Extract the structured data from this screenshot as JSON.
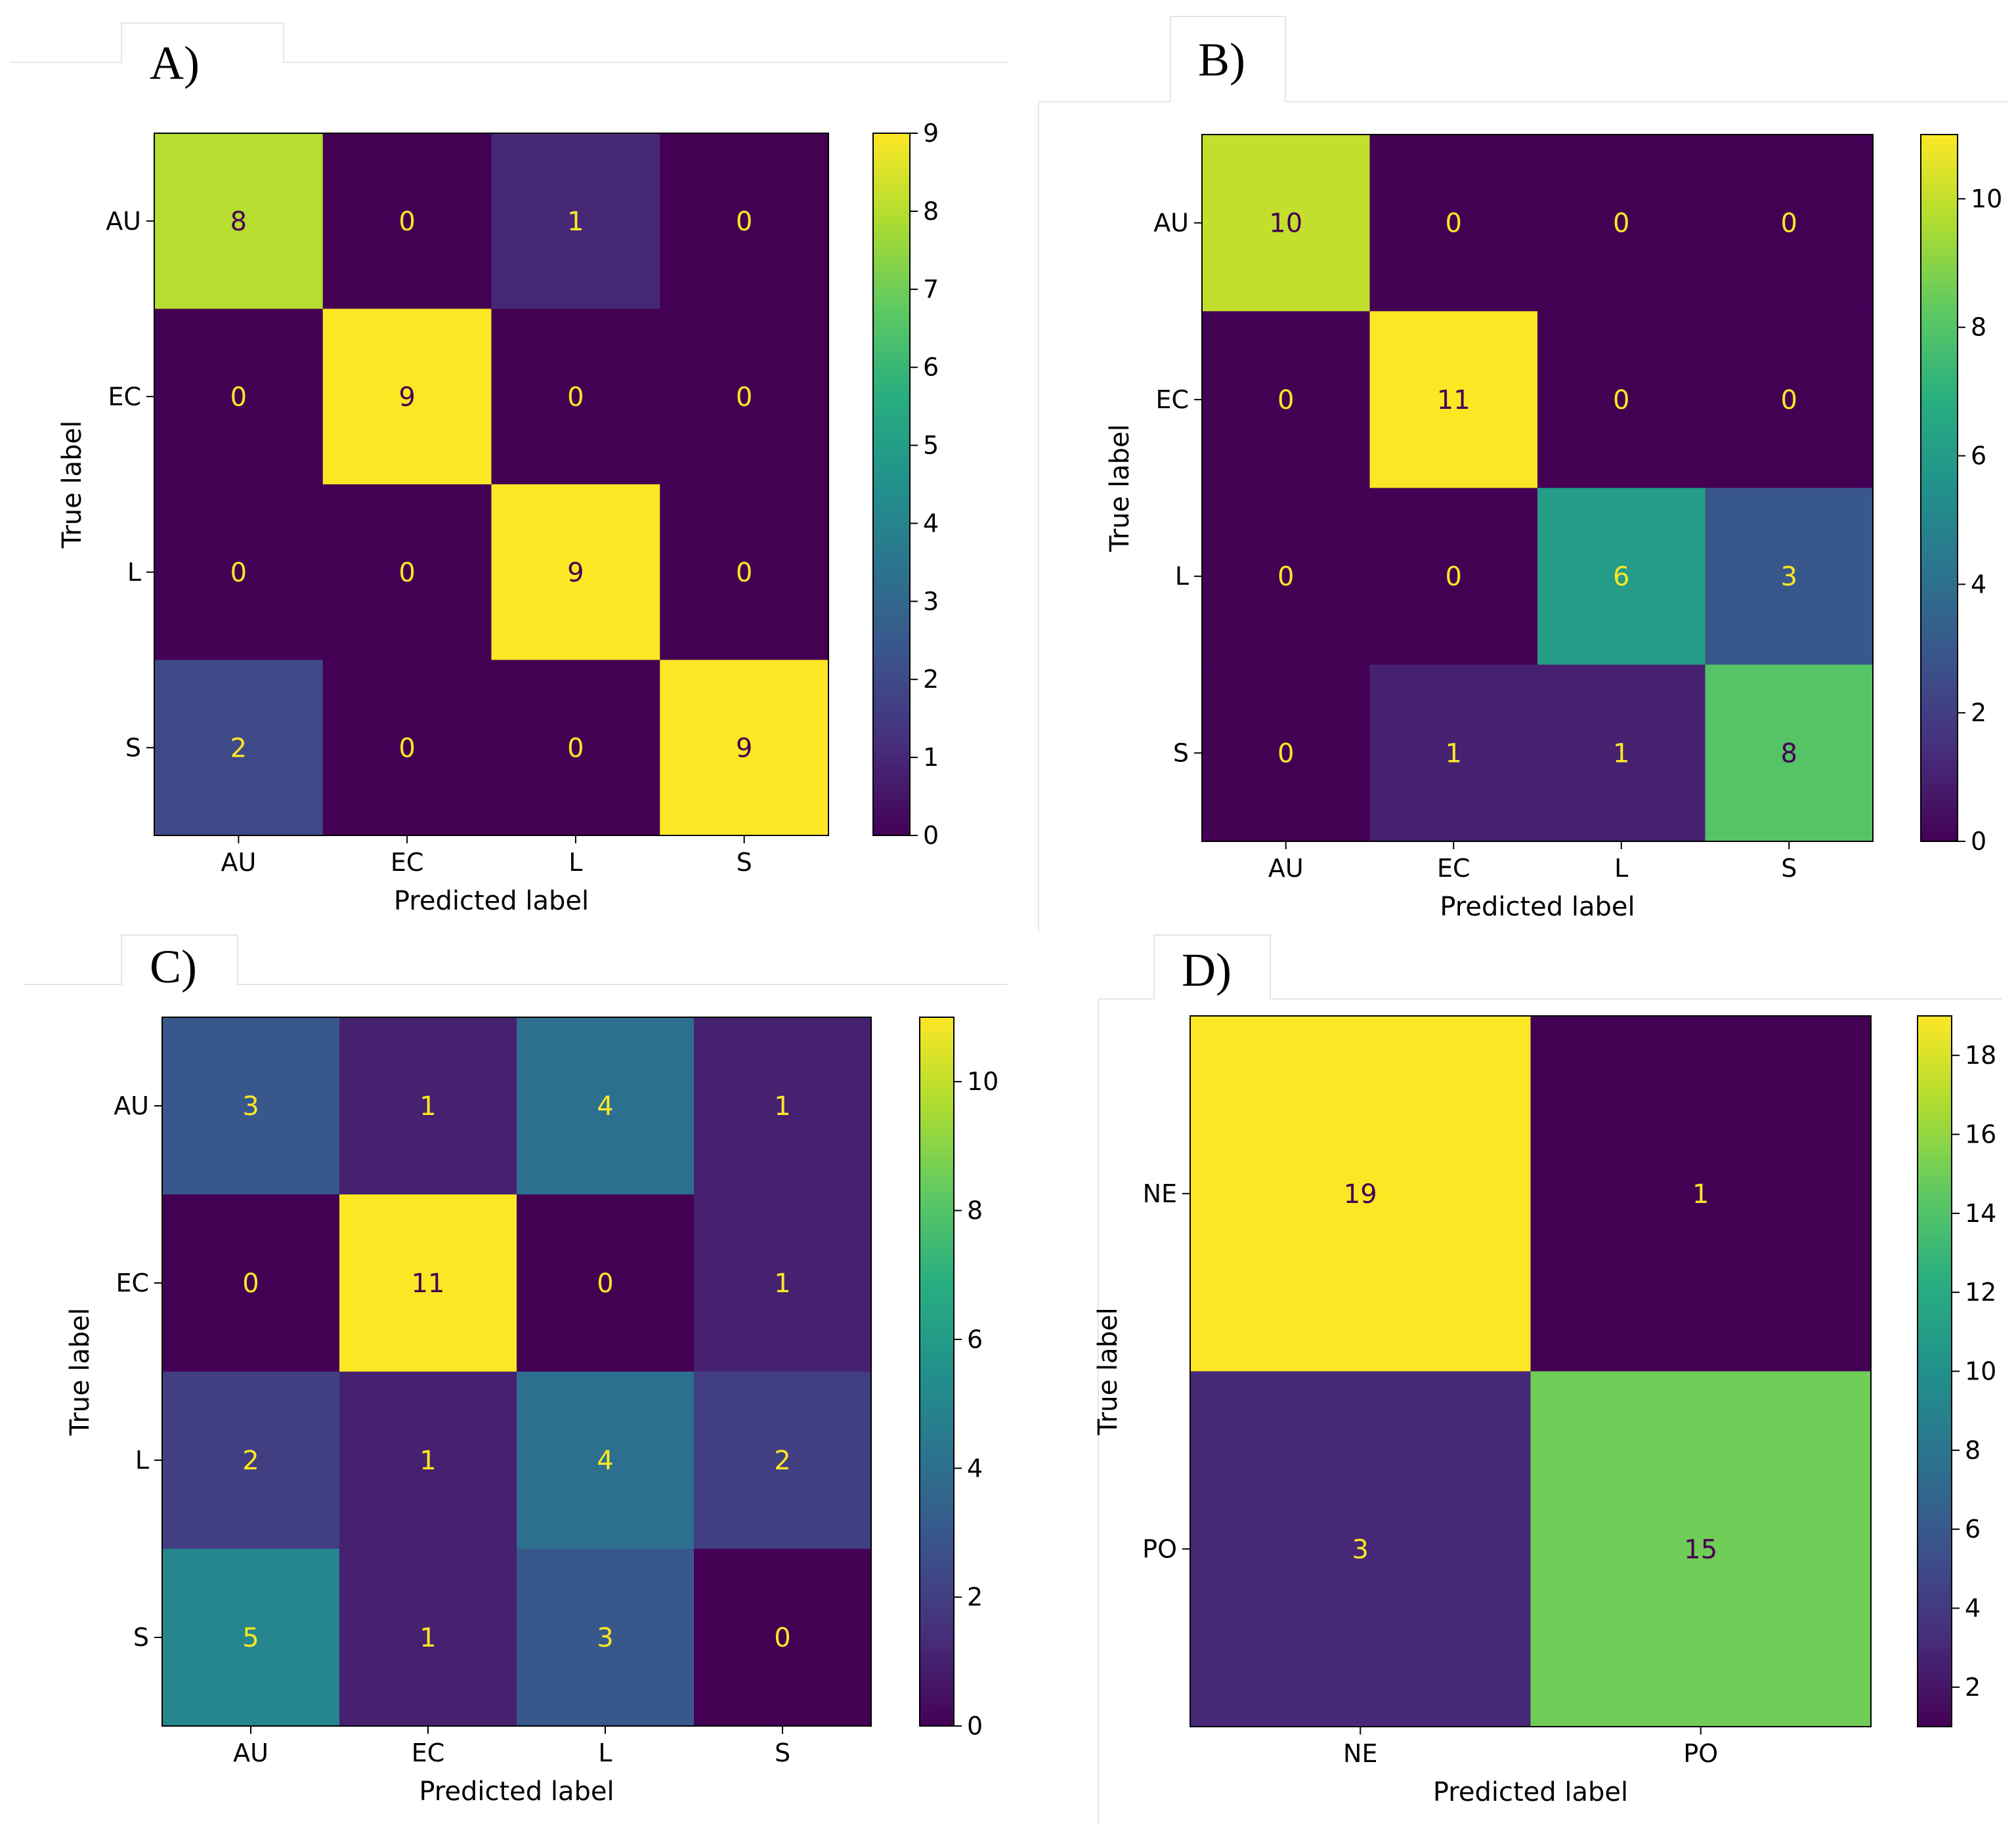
{
  "figure": {
    "colormap": "viridis",
    "panel_labels": [
      "A)",
      "B)",
      "C)",
      "D)"
    ]
  },
  "chart_data": [
    {
      "type": "heatmap",
      "panel": "A)",
      "title": "",
      "xlabel": "Predicted label",
      "ylabel": "True label",
      "x_categories": [
        "AU",
        "EC",
        "L",
        "S"
      ],
      "y_categories": [
        "AU",
        "EC",
        "L",
        "S"
      ],
      "matrix": [
        [
          8,
          0,
          1,
          0
        ],
        [
          0,
          9,
          0,
          0
        ],
        [
          0,
          0,
          9,
          0
        ],
        [
          2,
          0,
          0,
          9
        ]
      ],
      "vmin": 0,
      "vmax": 9,
      "colorbar_ticks": [
        0,
        1,
        2,
        3,
        4,
        5,
        6,
        7,
        8,
        9
      ]
    },
    {
      "type": "heatmap",
      "panel": "B)",
      "title": "",
      "xlabel": "Predicted label",
      "ylabel": "True label",
      "x_categories": [
        "AU",
        "EC",
        "L",
        "S"
      ],
      "y_categories": [
        "AU",
        "EC",
        "L",
        "S"
      ],
      "matrix": [
        [
          10,
          0,
          0,
          0
        ],
        [
          0,
          11,
          0,
          0
        ],
        [
          0,
          0,
          6,
          3
        ],
        [
          0,
          1,
          1,
          8
        ]
      ],
      "vmin": 0,
      "vmax": 11,
      "colorbar_ticks": [
        0,
        2,
        4,
        6,
        8,
        10
      ]
    },
    {
      "type": "heatmap",
      "panel": "C)",
      "title": "",
      "xlabel": "Predicted label",
      "ylabel": "True label",
      "x_categories": [
        "AU",
        "EC",
        "L",
        "S"
      ],
      "y_categories": [
        "AU",
        "EC",
        "L",
        "S"
      ],
      "matrix": [
        [
          3,
          1,
          4,
          1
        ],
        [
          0,
          11,
          0,
          1
        ],
        [
          2,
          1,
          4,
          2
        ],
        [
          5,
          1,
          3,
          0
        ]
      ],
      "vmin": 0,
      "vmax": 11,
      "colorbar_ticks": [
        0,
        2,
        4,
        6,
        8,
        10
      ]
    },
    {
      "type": "heatmap",
      "panel": "D)",
      "title": "",
      "xlabel": "Predicted label",
      "ylabel": "True label",
      "x_categories": [
        "NE",
        "PO"
      ],
      "y_categories": [
        "NE",
        "PO"
      ],
      "matrix": [
        [
          19,
          1
        ],
        [
          3,
          15
        ]
      ],
      "vmin": 1,
      "vmax": 19,
      "colorbar_ticks": [
        2,
        4,
        6,
        8,
        10,
        12,
        14,
        16,
        18
      ]
    }
  ]
}
